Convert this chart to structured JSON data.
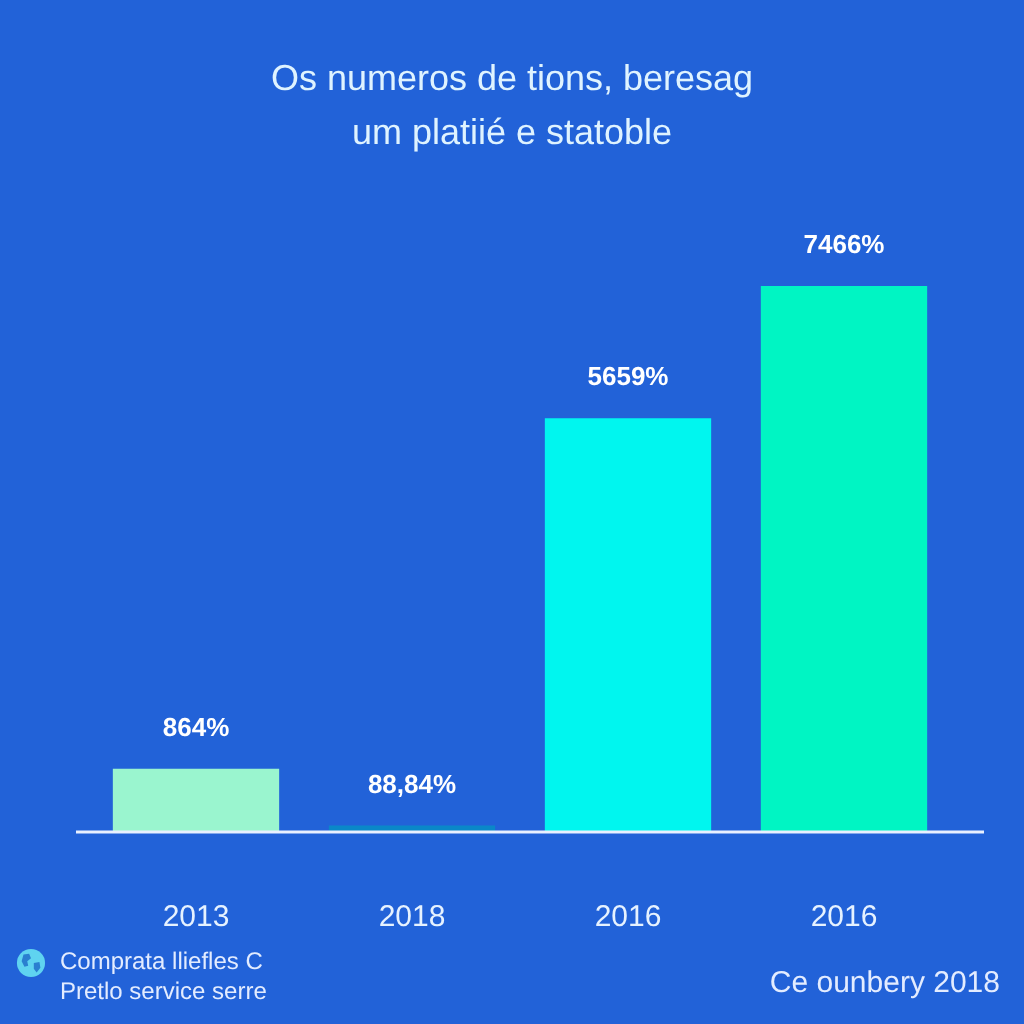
{
  "chart_data": {
    "type": "bar",
    "title": "Os numeros de tions, beresag\num platiié e statoble",
    "categories": [
      "2013",
      "2018",
      "2016",
      "2016"
    ],
    "values": [
      864,
      88.84,
      5659,
      7466
    ],
    "colors": [
      "#9af5cf",
      "#0a87c8",
      "#00f6ef",
      "#00f5c3"
    ],
    "value_labels": [
      "864%",
      "88,84%",
      "5659%",
      "7466%"
    ],
    "annotations": [
      "Comprata lliefles C\nPretlo service serre",
      "Ce ounbery 2018"
    ]
  }
}
